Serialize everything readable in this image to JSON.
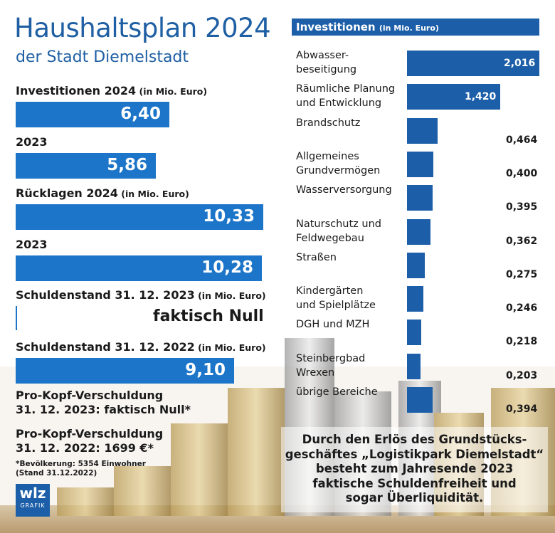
{
  "left": {
    "title": "Haushaltsplan 2024",
    "subtitle": "der Stadt Diemelstadt",
    "items": [
      {
        "label": "Investitionen 2024",
        "unit": "(in Mio. Euro)",
        "value": "6,40",
        "num": 6.4
      },
      {
        "label": "2023",
        "unit": "",
        "value": "5,86",
        "num": 5.86
      },
      {
        "label": "Rücklagen 2024",
        "unit": "(in Mio. Euro)",
        "value": "10,33",
        "num": 10.33
      },
      {
        "label": "2023",
        "unit": "",
        "value": "10,28",
        "num": 10.28
      },
      {
        "label": "Schuldenstand 31. 12. 2023",
        "unit": "(in Mio. Euro)",
        "value": "faktisch Null",
        "num": 0
      },
      {
        "label": "Schuldenstand 31. 12. 2022",
        "unit": "(in Mio. Euro)",
        "value": "9,10",
        "num": 9.1
      }
    ],
    "prokopf1_line1": "Pro-Kopf-Verschuldung",
    "prokopf1_line2": "31. 12. 2023: faktisch Null*",
    "prokopf2_line1": "Pro-Kopf-Verschuldung",
    "prokopf2_line2": "31. 12. 2022: 1699 €*",
    "footnote_line1": "*Bevölkerung: 5354 Einwohner",
    "footnote_line2": "(Stand 31.12.2022)",
    "logo_text": "wlz",
    "logo_sub": "GRAFIK"
  },
  "chart_data": {
    "type": "bar",
    "title": "Investitionen",
    "unit": "(in Mio. Euro)",
    "categories": [
      "Abwasser-\nbeseitigung",
      "Räumliche Planung\nund Entwicklung",
      "Brandschutz",
      "Allgemeines\nGrundvermögen",
      "Wasserversorgung",
      "Naturschutz und\nFeldwegebau",
      "Straßen",
      "Kindergärten\nund Spielplätze",
      "DGH und MZH",
      "Steinbergbad\nWrexen",
      "übrige Bereiche"
    ],
    "values": [
      2.016,
      1.42,
      0.464,
      0.4,
      0.395,
      0.362,
      0.275,
      0.246,
      0.218,
      0.203,
      0.394
    ],
    "labels": [
      "2,016",
      "1,420",
      "0,464",
      "0,400",
      "0,395",
      "0,362",
      "0,275",
      "0,246",
      "0,218",
      "0,203",
      "0,394"
    ]
  },
  "footer": {
    "line1": "Durch den Erlös des Grundstücks-",
    "line2": "geschäftes  „Logistikpark Diemelstadt“",
    "line3": "besteht zum Jahresende 2023",
    "line4": "faktische Schuldenfreiheit und",
    "line5": "sogar Überliquidität."
  },
  "colors": {
    "bar_left": "#1c75c8",
    "bar_right": "#1c5fa8",
    "title": "#1f5fa3"
  }
}
